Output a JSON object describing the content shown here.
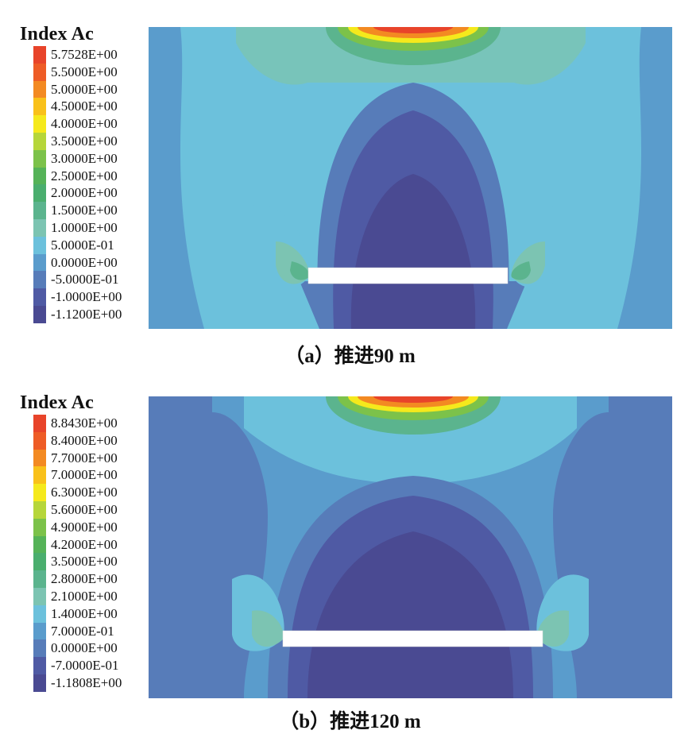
{
  "panels": [
    {
      "legend_title": "Index Ac",
      "legend": [
        {
          "label": "5.7528E+00",
          "color": "#e8442a"
        },
        {
          "label": "5.5000E+00",
          "color": "#ee5c26"
        },
        {
          "label": "5.0000E+00",
          "color": "#f38a22"
        },
        {
          "label": "4.5000E+00",
          "color": "#f9c11a"
        },
        {
          "label": "4.0000E+00",
          "color": "#f5e91c"
        },
        {
          "label": "3.5000E+00",
          "color": "#b6d63a"
        },
        {
          "label": "3.0000E+00",
          "color": "#7cc24a"
        },
        {
          "label": "2.5000E+00",
          "color": "#55b358"
        },
        {
          "label": "2.0000E+00",
          "color": "#4aae6e"
        },
        {
          "label": "1.5000E+00",
          "color": "#5bb48e"
        },
        {
          "label": "1.0000E+00",
          "color": "#7cc4b2"
        },
        {
          "label": "5.0000E-01",
          "color": "#6cc1dc"
        },
        {
          "label": "0.0000E+00",
          "color": "#5a9ccc"
        },
        {
          "label": "-5.0000E-01",
          "color": "#577cb9"
        },
        {
          "label": "-1.0000E+00",
          "color": "#4f5aa4"
        },
        {
          "label": "-1.1200E+00",
          "color": "#4a4a92"
        }
      ],
      "caption": "（a）推进90 m"
    },
    {
      "legend_title": "Index Ac",
      "legend": [
        {
          "label": "8.8430E+00",
          "color": "#e8442a"
        },
        {
          "label": "8.4000E+00",
          "color": "#ee5c26"
        },
        {
          "label": "7.7000E+00",
          "color": "#f38a22"
        },
        {
          "label": "7.0000E+00",
          "color": "#f9c11a"
        },
        {
          "label": "6.3000E+00",
          "color": "#f5e91c"
        },
        {
          "label": "5.6000E+00",
          "color": "#b6d63a"
        },
        {
          "label": "4.9000E+00",
          "color": "#7cc24a"
        },
        {
          "label": "4.2000E+00",
          "color": "#55b358"
        },
        {
          "label": "3.5000E+00",
          "color": "#4aae6e"
        },
        {
          "label": "2.8000E+00",
          "color": "#5bb48e"
        },
        {
          "label": "2.1000E+00",
          "color": "#7cc4b2"
        },
        {
          "label": "1.4000E+00",
          "color": "#6cc1dc"
        },
        {
          "label": "7.0000E-01",
          "color": "#5a9ccc"
        },
        {
          "label": "0.0000E+00",
          "color": "#577cb9"
        },
        {
          "label": "-7.0000E-01",
          "color": "#4f5aa4"
        },
        {
          "label": "-1.1808E+00",
          "color": "#4a4a92"
        }
      ],
      "caption": "（b）推进120 m"
    }
  ]
}
